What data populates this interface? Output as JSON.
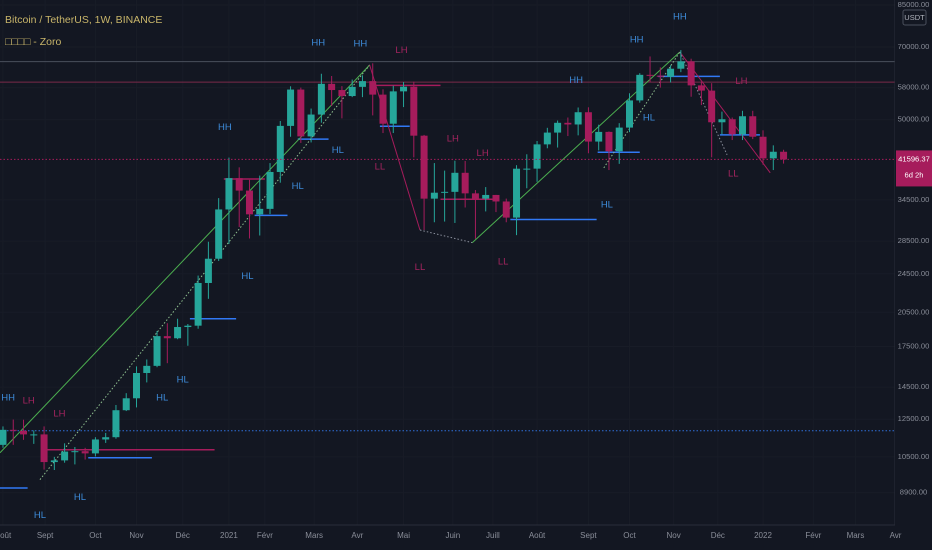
{
  "chart_data": {
    "type": "candlestick",
    "title": "Bitcoin / TetherUS, 1W, BINANCE",
    "subtitle": "□□□□ - Zoro",
    "currency": "USDT",
    "countdown": "6d 2h",
    "log_scale": true,
    "grid": true,
    "up_color": "#26a69a",
    "down_color": "#a61c5c",
    "xlim": [
      -0.29,
      86.85
    ],
    "ylim": [
      7660,
      87000
    ],
    "xticks": [
      {
        "value": 0,
        "label": "Août"
      },
      {
        "value": 4.1,
        "label": "Sept"
      },
      {
        "value": 9,
        "label": "Oct"
      },
      {
        "value": 13,
        "label": "Nov"
      },
      {
        "value": 17.5,
        "label": "Déc"
      },
      {
        "value": 22,
        "label": "2021"
      },
      {
        "value": 25.5,
        "label": "Févr"
      },
      {
        "value": 30.3,
        "label": "Mars"
      },
      {
        "value": 34.5,
        "label": "Avr"
      },
      {
        "value": 39,
        "label": "Mai"
      },
      {
        "value": 43.8,
        "label": "Juin"
      },
      {
        "value": 47.7,
        "label": "Juill"
      },
      {
        "value": 52,
        "label": "Août"
      },
      {
        "value": 57,
        "label": "Sept"
      },
      {
        "value": 61,
        "label": "Oct"
      },
      {
        "value": 65.3,
        "label": "Nov"
      },
      {
        "value": 69.6,
        "label": "Déc"
      },
      {
        "value": 74,
        "label": "2022"
      },
      {
        "value": 78.9,
        "label": "Févr"
      },
      {
        "value": 83,
        "label": "Mars"
      },
      {
        "value": 86.9,
        "label": "Avr"
      }
    ],
    "yticks": [
      {
        "value": 85000,
        "label": "85000.00"
      },
      {
        "value": 70000,
        "label": "70000.00"
      },
      {
        "value": 58000,
        "label": "58000.00"
      },
      {
        "value": 50000,
        "label": "50000.00"
      },
      {
        "value": 34500,
        "label": "34500.00"
      },
      {
        "value": 28500,
        "label": "28500.00"
      },
      {
        "value": 24500,
        "label": "24500.00"
      },
      {
        "value": 20500,
        "label": "20500.00"
      },
      {
        "value": 17500,
        "label": "17500.00"
      },
      {
        "value": 14500,
        "label": "14500.00"
      },
      {
        "value": 12500,
        "label": "12500.00"
      },
      {
        "value": 10500,
        "label": "10500.00"
      },
      {
        "value": 8900,
        "label": "8900.00"
      }
    ],
    "open": [
      11100,
      11900,
      11850,
      11650,
      11650,
      10250,
      10330,
      10760,
      10780,
      10670,
      11380,
      11500,
      13030,
      13770,
      15480,
      16000,
      18360,
      18180,
      19150,
      19270,
      23480,
      26270,
      33000,
      38150,
      36010,
      32260,
      33090,
      39250,
      48580,
      57480,
      46280,
      51200,
      59020,
      57350,
      55780,
      58200,
      59770,
      56150,
      49070,
      57000,
      58240,
      46430,
      34690,
      35660,
      35800,
      39100,
      35550,
      34700,
      35290,
      34240,
      31780,
      39850,
      39860,
      44600,
      47100,
      49280,
      48900,
      51750,
      45180,
      47250,
      43200,
      48200,
      54660,
      61530,
      61300,
      61000,
      63300,
      65500,
      58600,
      57200,
      49400,
      50100,
      46700,
      50800,
      46200,
      41800,
      43100
    ],
    "high": [
      12090,
      12480,
      12470,
      11870,
      12090,
      10500,
      11180,
      10990,
      10950,
      11500,
      11730,
      13350,
      14100,
      15960,
      16480,
      18800,
      19490,
      19900,
      19420,
      24300,
      28420,
      34780,
      41950,
      40100,
      37850,
      38600,
      40900,
      49700,
      58350,
      58000,
      52640,
      61840,
      61200,
      58400,
      60200,
      61400,
      64900,
      57550,
      58500,
      59500,
      59600,
      46600,
      40900,
      39500,
      41350,
      41300,
      36100,
      36600,
      35300,
      34700,
      40500,
      42600,
      45300,
      48150,
      49800,
      50500,
      52900,
      52950,
      48850,
      47350,
      49200,
      56500,
      62000,
      67000,
      63700,
      64300,
      69000,
      66300,
      59600,
      59200,
      51900,
      50500,
      52100,
      52100,
      47600,
      44400,
      43500
    ],
    "low": [
      10950,
      11100,
      11360,
      11150,
      9900,
      9880,
      10220,
      10140,
      10370,
      10520,
      11200,
      11420,
      12980,
      13200,
      14820,
      15900,
      16200,
      18100,
      17560,
      19000,
      21820,
      26000,
      28130,
      30420,
      28850,
      29250,
      32300,
      37350,
      46200,
      44900,
      45000,
      49300,
      53270,
      50300,
      55500,
      55500,
      51000,
      47000,
      47000,
      53000,
      42000,
      30000,
      31100,
      31200,
      31000,
      33300,
      28800,
      32700,
      32600,
      31100,
      29300,
      36400,
      37500,
      43800,
      43950,
      46350,
      46500,
      42800,
      43370,
      39600,
      40750,
      47200,
      54100,
      59500,
      58000,
      59400,
      62300,
      55600,
      53500,
      42000,
      46700,
      45500,
      45500,
      45700,
      40600,
      39600,
      40800
    ],
    "close": [
      11900,
      11850,
      11650,
      11650,
      10250,
      10330,
      10760,
      10780,
      10670,
      11380,
      11500,
      13030,
      13770,
      15480,
      16000,
      18360,
      18180,
      19150,
      19270,
      23480,
      26270,
      33000,
      38150,
      36010,
      32260,
      33090,
      39250,
      48580,
      57480,
      46280,
      51200,
      59020,
      57350,
      55780,
      58200,
      59770,
      56150,
      49070,
      57000,
      58240,
      46430,
      34690,
      35660,
      35800,
      39100,
      35550,
      34700,
      35290,
      34240,
      31780,
      39850,
      39860,
      44600,
      47100,
      49280,
      48900,
      51750,
      45180,
      47250,
      43200,
      48200,
      54660,
      61530,
      61300,
      61000,
      63300,
      65500,
      58600,
      57200,
      49400,
      50100,
      46700,
      50800,
      46200,
      41800,
      43100,
      41596.37
    ],
    "levels": [
      {
        "price": 65400,
        "color": "#4a4f5c",
        "style": "solid"
      },
      {
        "price": 59500,
        "color": "#7a2a4a",
        "style": "solid"
      },
      {
        "price": 11850,
        "color": "#2f6fd8",
        "style": "dotted"
      },
      {
        "price": 9090,
        "from": -0.3,
        "to": 2.4,
        "color": "#3179f5",
        "style": "solid"
      },
      {
        "price": 10850,
        "from": 4.3,
        "to": 20.6,
        "color": "#a61c5c",
        "style": "solid"
      },
      {
        "price": 10460,
        "from": 8.3,
        "to": 14.5,
        "color": "#3179f5",
        "style": "solid"
      },
      {
        "price": 19900,
        "from": 18.2,
        "to": 22.7,
        "color": "#3179f5",
        "style": "solid"
      },
      {
        "price": 38000,
        "from": 21.5,
        "to": 25.5,
        "color": "#a61c5c",
        "style": "solid"
      },
      {
        "price": 32100,
        "from": 24.5,
        "to": 27.7,
        "color": "#3179f5",
        "style": "solid"
      },
      {
        "price": 45700,
        "from": 28.7,
        "to": 31.7,
        "color": "#3179f5",
        "style": "solid"
      },
      {
        "price": 58600,
        "from": 35.7,
        "to": 42.6,
        "color": "#a61c5c",
        "style": "solid"
      },
      {
        "price": 48500,
        "from": 36.7,
        "to": 39.6,
        "color": "#3179f5",
        "style": "solid"
      },
      {
        "price": 34600,
        "from": 42.6,
        "to": 48.1,
        "color": "#a61c5c",
        "style": "solid"
      },
      {
        "price": 31500,
        "from": 49.4,
        "to": 57.8,
        "color": "#3179f5",
        "style": "solid"
      },
      {
        "price": 43000,
        "from": 57.9,
        "to": 62,
        "color": "#3179f5",
        "style": "solid"
      },
      {
        "price": 61100,
        "from": 63.8,
        "to": 69.8,
        "color": "#3179f5",
        "style": "solid"
      },
      {
        "price": 46600,
        "from": 69.8,
        "to": 73.7,
        "color": "#3179f5",
        "style": "solid"
      }
    ],
    "trendlines": [
      {
        "x": [
          -0.29,
          35.7
        ],
        "y": [
          10700,
          64400
        ],
        "color": "#4caf50",
        "style": "solid"
      },
      {
        "x": [
          3.6,
          35.7
        ],
        "y": [
          9450,
          64400
        ],
        "color": "#8fbf8f",
        "style": "dotted"
      },
      {
        "x": [
          35.7,
          40.6
        ],
        "y": [
          64400,
          30000
        ],
        "color": "#a61c5c",
        "style": "solid"
      },
      {
        "x": [
          40.6,
          45.7
        ],
        "y": [
          30000,
          28300
        ],
        "color": "#8a8f9c",
        "style": "dotted"
      },
      {
        "x": [
          45.7,
          65.9
        ],
        "y": [
          28300,
          68400
        ],
        "color": "#4caf50",
        "style": "solid"
      },
      {
        "x": [
          58.5,
          65.9
        ],
        "y": [
          40000,
          68400
        ],
        "color": "#8fbf8f",
        "style": "dotted"
      },
      {
        "x": [
          65.9,
          74.7
        ],
        "y": [
          68400,
          39100
        ],
        "color": "#a61c5c",
        "style": "solid"
      },
      {
        "x": [
          65.9,
          70.5
        ],
        "y": [
          68400,
          42500
        ],
        "color": "#8a8f9c",
        "style": "dotted"
      }
    ],
    "annotations": [
      {
        "text": "HH",
        "x": 0.5,
        "y": 13800,
        "color": "#3d8bd9"
      },
      {
        "text": "LH",
        "x": 2.5,
        "y": 13600,
        "color": "#a3245f"
      },
      {
        "text": "LH",
        "x": 5.5,
        "y": 12800,
        "color": "#a3245f"
      },
      {
        "text": "HL",
        "x": 3.6,
        "y": 8000,
        "color": "#3d8bd9"
      },
      {
        "text": "HL",
        "x": 7.5,
        "y": 8700,
        "color": "#3d8bd9"
      },
      {
        "text": "HL",
        "x": 15.5,
        "y": 13800,
        "color": "#3d8bd9"
      },
      {
        "text": "HL",
        "x": 17.5,
        "y": 15000,
        "color": "#3d8bd9"
      },
      {
        "text": "HL",
        "x": 23.8,
        "y": 24200,
        "color": "#3d8bd9"
      },
      {
        "text": "HH",
        "x": 21.6,
        "y": 48200,
        "color": "#3d8bd9"
      },
      {
        "text": "HL",
        "x": 28.7,
        "y": 36700,
        "color": "#3d8bd9"
      },
      {
        "text": "HL",
        "x": 32.6,
        "y": 43400,
        "color": "#3d8bd9"
      },
      {
        "text": "HH",
        "x": 30.7,
        "y": 71300,
        "color": "#3d8bd9"
      },
      {
        "text": "HH",
        "x": 34.8,
        "y": 71000,
        "color": "#3d8bd9"
      },
      {
        "text": "LH",
        "x": 38.8,
        "y": 68800,
        "color": "#a3245f"
      },
      {
        "text": "LL",
        "x": 36.7,
        "y": 40200,
        "color": "#a3245f"
      },
      {
        "text": "LH",
        "x": 43.8,
        "y": 45700,
        "color": "#a3245f"
      },
      {
        "text": "LH",
        "x": 46.7,
        "y": 42800,
        "color": "#a3245f"
      },
      {
        "text": "LL",
        "x": 40.6,
        "y": 25200,
        "color": "#a3245f"
      },
      {
        "text": "LL",
        "x": 48.7,
        "y": 25900,
        "color": "#a3245f"
      },
      {
        "text": "HH",
        "x": 55.8,
        "y": 60000,
        "color": "#3d8bd9"
      },
      {
        "text": "HL",
        "x": 58.8,
        "y": 33700,
        "color": "#3d8bd9"
      },
      {
        "text": "HH",
        "x": 61.7,
        "y": 72300,
        "color": "#3d8bd9"
      },
      {
        "text": "HH",
        "x": 65.9,
        "y": 80400,
        "color": "#3d8bd9"
      },
      {
        "text": "HL",
        "x": 62.9,
        "y": 50400,
        "color": "#3d8bd9"
      },
      {
        "text": "LH",
        "x": 71.9,
        "y": 59700,
        "color": "#a3245f"
      },
      {
        "text": "LL",
        "x": 71.1,
        "y": 38900,
        "color": "#a3245f"
      }
    ]
  }
}
